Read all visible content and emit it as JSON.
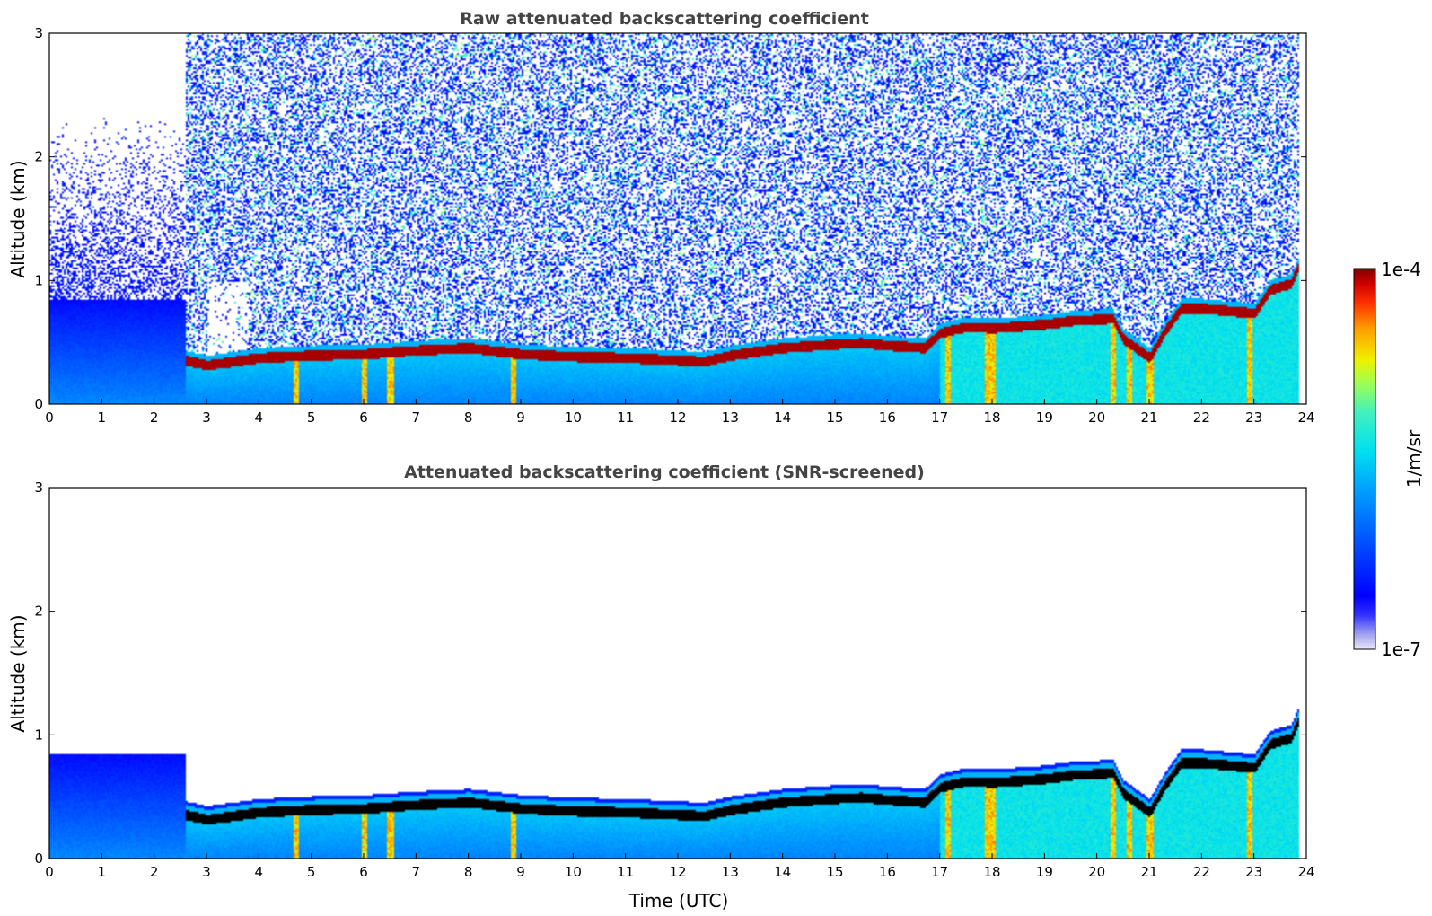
{
  "chart_data": [
    {
      "type": "heatmap",
      "title": "Raw attenuated backscattering coefficient",
      "xlabel": "",
      "ylabel": "Altitude (km)",
      "xlim": [
        0,
        24
      ],
      "ylim": [
        0,
        3
      ],
      "x_ticks": [
        "0",
        "1",
        "2",
        "3",
        "4",
        "5",
        "6",
        "7",
        "8",
        "9",
        "10",
        "11",
        "12",
        "13",
        "14",
        "15",
        "16",
        "17",
        "18",
        "19",
        "20",
        "21",
        "22",
        "23",
        "24"
      ],
      "y_ticks": [
        "0",
        "1",
        "2",
        "3"
      ],
      "screened": false,
      "layer_top_km": [
        [
          2.6,
          0.38
        ],
        [
          3.0,
          0.34
        ],
        [
          3.5,
          0.37
        ],
        [
          4,
          0.4
        ],
        [
          5,
          0.42
        ],
        [
          6,
          0.43
        ],
        [
          7,
          0.46
        ],
        [
          8,
          0.48
        ],
        [
          9,
          0.43
        ],
        [
          10,
          0.41
        ],
        [
          11,
          0.4
        ],
        [
          12,
          0.38
        ],
        [
          12.5,
          0.37
        ],
        [
          13,
          0.42
        ],
        [
          14,
          0.48
        ],
        [
          15,
          0.51
        ],
        [
          15.5,
          0.52
        ],
        [
          16,
          0.5
        ],
        [
          16.7,
          0.48
        ],
        [
          17,
          0.6
        ],
        [
          17.5,
          0.65
        ],
        [
          18,
          0.64
        ],
        [
          19,
          0.67
        ],
        [
          19.5,
          0.7
        ],
        [
          20,
          0.71
        ],
        [
          20.3,
          0.72
        ],
        [
          20.5,
          0.55
        ],
        [
          21,
          0.4
        ],
        [
          21.3,
          0.62
        ],
        [
          21.6,
          0.8
        ],
        [
          22,
          0.8
        ],
        [
          22.5,
          0.78
        ],
        [
          23,
          0.76
        ],
        [
          23.3,
          0.95
        ],
        [
          23.7,
          1.0
        ],
        [
          23.9,
          1.2
        ]
      ]
    },
    {
      "type": "heatmap",
      "title": "Attenuated backscattering coefficient (SNR-screened)",
      "xlabel": "Time (UTC)",
      "ylabel": "Altitude (km)",
      "xlim": [
        0,
        24
      ],
      "ylim": [
        0,
        3
      ],
      "x_ticks": [
        "0",
        "1",
        "2",
        "3",
        "4",
        "5",
        "6",
        "7",
        "8",
        "9",
        "10",
        "11",
        "12",
        "13",
        "14",
        "15",
        "16",
        "17",
        "18",
        "19",
        "20",
        "21",
        "22",
        "23",
        "24"
      ],
      "y_ticks": [
        "0",
        "1",
        "2",
        "3"
      ],
      "screened": true
    }
  ],
  "colorbar": {
    "label": "1/m/sr",
    "max_label": "1e-4",
    "min_label": "1e-7",
    "colors": [
      "#e8e8f8",
      "#a0a0f0",
      "#3030ff",
      "#0000ff",
      "#0050ff",
      "#00a0ff",
      "#00e0f0",
      "#40f0c0",
      "#a0ff50",
      "#f0f000",
      "#ffa000",
      "#ff3000",
      "#d00000",
      "#800000"
    ]
  }
}
